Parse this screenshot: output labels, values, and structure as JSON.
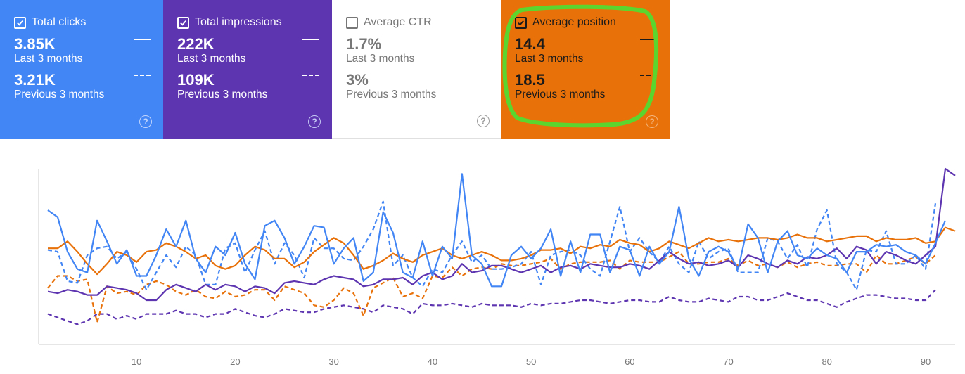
{
  "cards": [
    {
      "id": "clicks",
      "title": "Total clicks",
      "checked": true,
      "current_value": "3.85K",
      "current_label": "Last 3 months",
      "previous_value": "3.21K",
      "previous_label": "Previous 3 months",
      "color": "#4285f4"
    },
    {
      "id": "impressions",
      "title": "Total impressions",
      "checked": true,
      "current_value": "222K",
      "current_label": "Last 3 months",
      "previous_value": "109K",
      "previous_label": "Previous 3 months",
      "color": "#5e35b1"
    },
    {
      "id": "ctr",
      "title": "Average CTR",
      "checked": false,
      "current_value": "1.7%",
      "current_label": "Last 3 months",
      "previous_value": "3%",
      "previous_label": "Previous 3 months",
      "color": "#ffffff"
    },
    {
      "id": "position",
      "title": "Average position",
      "checked": true,
      "current_value": "14.4",
      "current_label": "Last 3 months",
      "previous_value": "18.5",
      "previous_label": "Previous 3 months",
      "color": "#e8710a"
    }
  ],
  "highlight_color": "#5cd62e",
  "help_glyph": "?",
  "chart_data": {
    "type": "line",
    "x_ticks": [
      10,
      20,
      30,
      40,
      50,
      60,
      70,
      80,
      90
    ],
    "xlim": [
      1,
      92
    ],
    "ylim": [
      0,
      100
    ],
    "grid": false,
    "series": [
      {
        "key": "clicks_current",
        "color": "#4285f4",
        "style": "solid",
        "x_start": 1,
        "values": [
          76,
          72,
          52,
          42,
          40,
          70,
          58,
          45,
          53,
          38,
          38,
          50,
          65,
          55,
          70,
          48,
          40,
          55,
          50,
          63,
          45,
          36,
          67,
          70,
          60,
          45,
          55,
          67,
          66,
          45,
          54,
          60,
          35,
          40,
          75,
          63,
          40,
          37,
          58,
          38,
          55,
          48,
          97,
          50,
          45,
          32,
          32,
          50,
          55,
          48,
          54,
          65,
          38,
          58,
          40,
          62,
          62,
          40,
          55,
          53,
          38,
          55,
          45,
          52,
          78,
          48,
          38,
          52,
          55,
          52,
          42,
          68,
          60,
          40,
          58,
          64,
          50,
          48,
          54,
          50,
          48,
          40,
          52,
          52,
          56,
          55,
          56,
          52,
          50,
          45,
          57,
          70
        ]
      },
      {
        "key": "clicks_previous",
        "color": "#4285f4",
        "style": "dashed",
        "x_start": 1,
        "values": [
          53,
          52,
          35,
          34,
          50,
          54,
          55,
          48,
          52,
          42,
          30,
          40,
          50,
          43,
          55,
          50,
          33,
          33,
          54,
          57,
          40,
          53,
          64,
          45,
          57,
          50,
          37,
          60,
          54,
          54,
          48,
          47,
          55,
          65,
          81,
          44,
          50,
          37,
          32,
          42,
          40,
          50,
          58,
          46,
          50,
          42,
          42,
          43,
          45,
          52,
          33,
          50,
          52,
          53,
          50,
          42,
          38,
          58,
          78,
          52,
          60,
          52,
          46,
          55,
          45,
          40,
          58,
          48,
          52,
          54,
          40,
          40,
          40,
          60,
          58,
          48,
          56,
          43,
          65,
          76,
          45,
          40,
          30,
          53,
          52,
          64,
          45,
          45,
          50,
          42,
          80
        ]
      },
      {
        "key": "impr_current",
        "color": "#5e35b1",
        "style": "solid",
        "x_start": 1,
        "values": [
          29,
          28,
          30,
          29,
          27,
          27,
          32,
          31,
          30,
          28,
          24,
          24,
          30,
          33,
          31,
          29,
          33,
          30,
          33,
          32,
          29,
          32,
          31,
          28,
          34,
          35,
          34,
          33,
          36,
          38,
          37,
          36,
          32,
          33,
          36,
          36,
          37,
          33,
          38,
          40,
          36,
          38,
          45,
          40,
          41,
          44,
          44,
          42,
          40,
          42,
          44,
          40,
          43,
          44,
          42,
          45,
          44,
          43,
          43,
          45,
          44,
          42,
          47,
          52,
          48,
          45,
          46,
          44,
          45,
          47,
          43,
          50,
          48,
          45,
          43,
          47,
          45,
          49,
          48,
          50,
          54,
          48,
          55,
          53,
          45,
          52,
          50,
          47,
          45,
          50,
          55,
          100,
          96
        ]
      },
      {
        "key": "impr_previous",
        "color": "#5e35b1",
        "style": "dashed",
        "x_start": 1,
        "values": [
          16,
          14,
          12,
          10,
          12,
          16,
          16,
          13,
          15,
          13,
          16,
          16,
          16,
          18,
          16,
          16,
          14,
          16,
          16,
          19,
          17,
          15,
          14,
          16,
          19,
          18,
          17,
          17,
          19,
          20,
          21,
          20,
          19,
          17,
          21,
          20,
          19,
          16,
          22,
          21,
          21,
          22,
          21,
          20,
          22,
          21,
          21,
          21,
          20,
          22,
          21,
          22,
          22,
          23,
          24,
          24,
          23,
          22,
          23,
          24,
          24,
          23,
          23,
          26,
          24,
          23,
          23,
          25,
          24,
          23,
          26,
          26,
          24,
          24,
          26,
          28,
          26,
          24,
          24,
          22,
          20,
          23,
          25,
          27,
          27,
          26,
          25,
          25,
          24,
          24,
          30
        ]
      },
      {
        "key": "pos_current",
        "color": "#e8710a",
        "style": "solid",
        "x_start": 1,
        "values": [
          54,
          54,
          58,
          52,
          45,
          39,
          45,
          52,
          50,
          46,
          52,
          53,
          57,
          55,
          52,
          48,
          50,
          44,
          42,
          44,
          50,
          55,
          53,
          48,
          48,
          43,
          46,
          52,
          56,
          60,
          57,
          50,
          42,
          44,
          47,
          51,
          48,
          46,
          50,
          52,
          54,
          50,
          48,
          50,
          52,
          50,
          47,
          47,
          48,
          50,
          53,
          53,
          54,
          51,
          55,
          54,
          56,
          55,
          59,
          57,
          56,
          52,
          54,
          58,
          56,
          54,
          57,
          60,
          58,
          59,
          58,
          59,
          60,
          60,
          59,
          60,
          62,
          60,
          60,
          58,
          59,
          60,
          61,
          61,
          58,
          60,
          59,
          59,
          60,
          57,
          58,
          66,
          64
        ]
      },
      {
        "key": "pos_previous",
        "color": "#e8710a",
        "style": "dashed",
        "x_start": 1,
        "values": [
          31,
          38,
          38,
          35,
          36,
          11,
          32,
          28,
          29,
          27,
          33,
          35,
          33,
          29,
          27,
          30,
          26,
          25,
          29,
          26,
          27,
          30,
          30,
          24,
          32,
          30,
          28,
          21,
          20,
          24,
          31,
          28,
          15,
          31,
          34,
          37,
          26,
          28,
          25,
          38,
          37,
          43,
          38,
          42,
          43,
          42,
          45,
          44,
          44,
          45,
          46,
          48,
          42,
          45,
          46,
          46,
          46,
          47,
          42,
          47,
          46,
          46,
          46,
          49,
          52,
          45,
          45,
          46,
          46,
          48,
          44,
          47,
          44,
          45,
          43,
          46,
          43,
          45,
          46,
          44,
          44,
          45,
          45,
          40,
          50,
          45,
          45,
          47,
          49,
          45,
          50
        ]
      }
    ]
  }
}
